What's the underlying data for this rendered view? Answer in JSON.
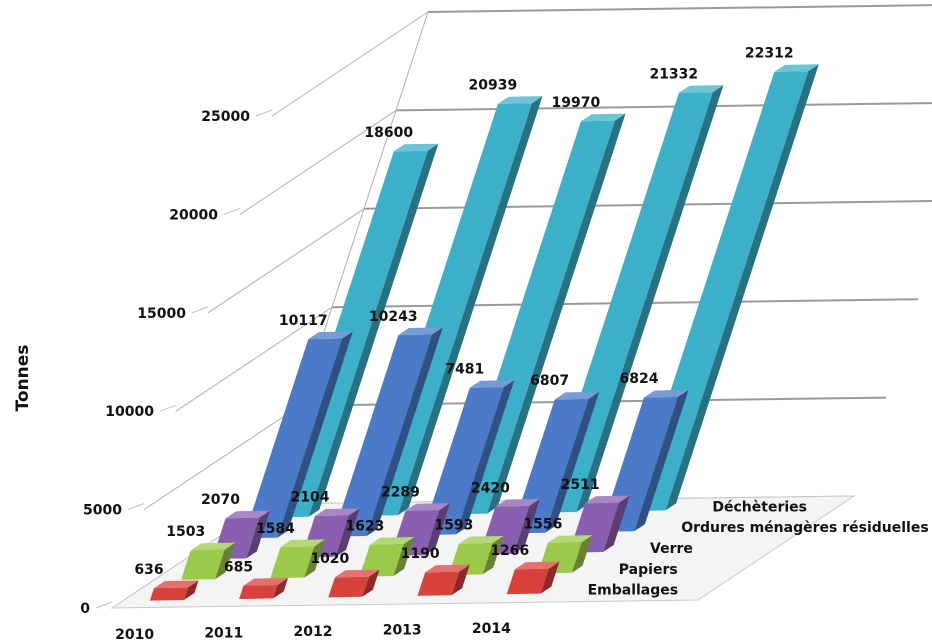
{
  "chart_data": {
    "type": "bar",
    "subtype": "3d-column",
    "title": "",
    "xlabel": "",
    "ylabel": "Tonnes",
    "categories": [
      "2010",
      "2011",
      "2012",
      "2013",
      "2014"
    ],
    "ylim": [
      0,
      25000
    ],
    "yticks": [
      "0",
      "5000",
      "10000",
      "15000",
      "20000",
      "25000"
    ],
    "grid": true,
    "series": [
      {
        "name": "Emballages",
        "values": [
          636,
          685,
          1020,
          1190,
          1266
        ],
        "color": "#d9413c"
      },
      {
        "name": "Papiers",
        "values": [
          1503,
          1584,
          1623,
          1593,
          1556
        ],
        "color": "#9bc94a"
      },
      {
        "name": "Verre",
        "values": [
          2070,
          2104,
          2289,
          2420,
          2511
        ],
        "color": "#8a5fb0"
      },
      {
        "name": "Ordures ménagères résiduelles",
        "values": [
          10117,
          10243,
          7481,
          6807,
          6824
        ],
        "color": "#4a7ac8"
      },
      {
        "name": "Déchèteries",
        "values": [
          18600,
          20939,
          19970,
          21332,
          22312
        ],
        "color": "#3cb0c8"
      }
    ]
  }
}
